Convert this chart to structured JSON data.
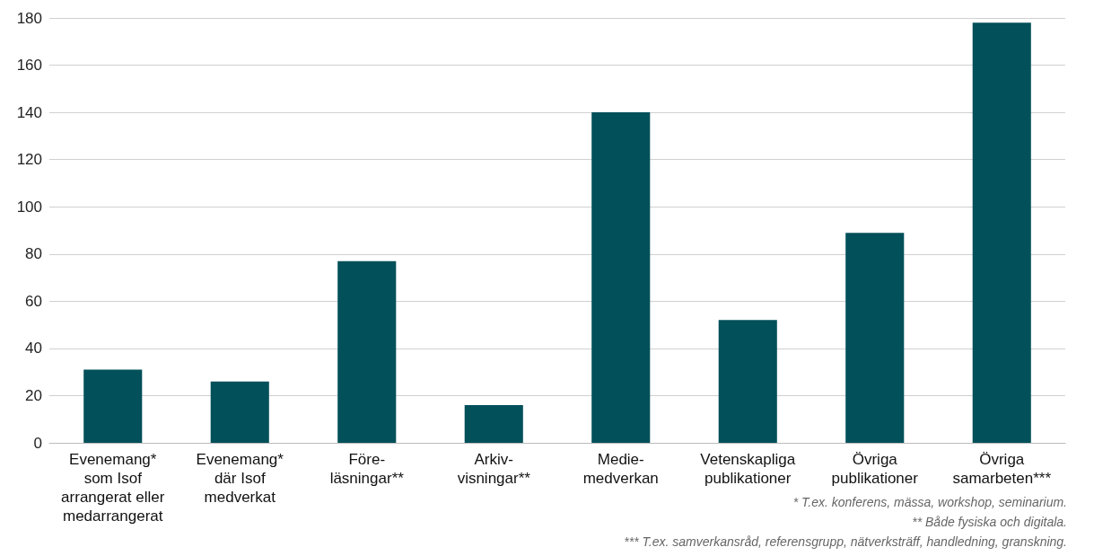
{
  "chart_data": {
    "type": "bar",
    "categories": [
      "Evenemang*\nsom Isof\narrangerat eller\nmedarrangerat",
      "Evenemang*\ndär Isof\nmedverkat",
      "Före-\nläsningar**",
      "Arkiv-\nvisningar**",
      "Medie-\nmedverkan",
      "Vetenskapliga\npublikationer",
      "Övriga\npublikationer",
      "Övriga\nsamarbeten***"
    ],
    "values": [
      31,
      26,
      77,
      16,
      140,
      52,
      89,
      178
    ],
    "color": "#02505a",
    "ylim": [
      0,
      180
    ],
    "yticks": [
      0,
      20,
      40,
      60,
      80,
      100,
      120,
      140,
      160,
      180
    ],
    "grid": "y",
    "annotations": [
      "* T.ex. konferens, mässa, workshop, seminarium.",
      "** Både fysiska och digitala.",
      "*** T.ex. samverkansråd, referensgrupp, nätverksträff, handledning, granskning."
    ]
  }
}
